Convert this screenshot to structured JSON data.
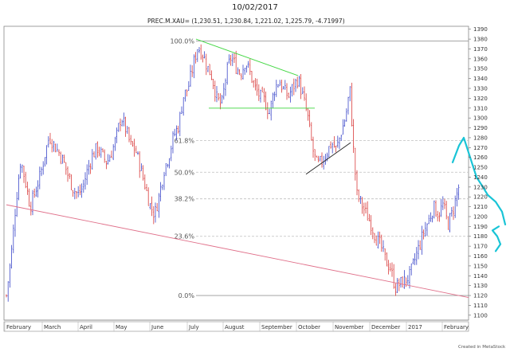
{
  "page": {
    "date_title": "10/02/2017",
    "symbol_info": "PREC.M.XAU= (1,230.51, 1,230.84, 1,221.02, 1,225.79, -4.71997)",
    "credit": "Created in MetaStock"
  },
  "colors": {
    "up_bar": "#3b47c9",
    "down_bar": "#d93b3b",
    "trend_green": "#3fd63f",
    "trend_pink": "#e0708a",
    "trend_black": "#222222",
    "annotation_cyan": "#19c4d6",
    "grid": "#bfbfbf",
    "frame": "#888888"
  },
  "chart_data": {
    "type": "ohlc",
    "title": "PREC.M.XAU= (1,230.51, 1,230.84, 1,221.02, 1,225.79, -4.71997)",
    "ylim": [
      1095,
      1393
    ],
    "y_ticks": [
      1100,
      1110,
      1120,
      1130,
      1140,
      1150,
      1160,
      1170,
      1180,
      1190,
      1200,
      1210,
      1220,
      1230,
      1240,
      1250,
      1260,
      1270,
      1280,
      1290,
      1300,
      1310,
      1320,
      1330,
      1340,
      1350,
      1360,
      1370,
      1380,
      1390
    ],
    "x_ticks": [
      "February",
      "March",
      "April",
      "May",
      "June",
      "July",
      "August",
      "September",
      "October",
      "November",
      "December",
      "2017",
      "February"
    ],
    "fib_levels": [
      {
        "label": "100.0%",
        "value": 1378
      },
      {
        "label": "61.8%",
        "value": 1277
      },
      {
        "label": "50.0%",
        "value": 1245
      },
      {
        "label": "38.2%",
        "value": 1218
      },
      {
        "label": "23.6%",
        "value": 1180
      },
      {
        "label": "0.0%",
        "value": 1120
      }
    ],
    "price_path": [
      [
        0,
        1120
      ],
      [
        6,
        1160
      ],
      [
        12,
        1215
      ],
      [
        18,
        1258
      ],
      [
        24,
        1235
      ],
      [
        30,
        1210
      ],
      [
        36,
        1225
      ],
      [
        42,
        1240
      ],
      [
        48,
        1262
      ],
      [
        54,
        1282
      ],
      [
        60,
        1272
      ],
      [
        66,
        1265
      ],
      [
        72,
        1255
      ],
      [
        78,
        1240
      ],
      [
        84,
        1228
      ],
      [
        90,
        1222
      ],
      [
        96,
        1230
      ],
      [
        102,
        1248
      ],
      [
        108,
        1262
      ],
      [
        114,
        1270
      ],
      [
        120,
        1262
      ],
      [
        126,
        1255
      ],
      [
        132,
        1265
      ],
      [
        138,
        1280
      ],
      [
        144,
        1302
      ],
      [
        150,
        1288
      ],
      [
        156,
        1272
      ],
      [
        162,
        1268
      ],
      [
        168,
        1250
      ],
      [
        174,
        1232
      ],
      [
        180,
        1212
      ],
      [
        186,
        1202
      ],
      [
        192,
        1222
      ],
      [
        198,
        1248
      ],
      [
        204,
        1262
      ],
      [
        210,
        1282
      ],
      [
        216,
        1292
      ],
      [
        222,
        1322
      ],
      [
        228,
        1330
      ],
      [
        234,
        1352
      ],
      [
        240,
        1372
      ],
      [
        246,
        1366
      ],
      [
        252,
        1352
      ],
      [
        258,
        1342
      ],
      [
        264,
        1320
      ],
      [
        270,
        1312
      ],
      [
        276,
        1345
      ],
      [
        282,
        1362
      ],
      [
        288,
        1352
      ],
      [
        294,
        1345
      ],
      [
        300,
        1358
      ],
      [
        306,
        1345
      ],
      [
        312,
        1330
      ],
      [
        318,
        1322
      ],
      [
        324,
        1318
      ],
      [
        330,
        1305
      ],
      [
        336,
        1328
      ],
      [
        342,
        1338
      ],
      [
        348,
        1328
      ],
      [
        354,
        1322
      ],
      [
        360,
        1332
      ],
      [
        366,
        1340
      ],
      [
        372,
        1322
      ],
      [
        378,
        1302
      ],
      [
        382,
        1280
      ],
      [
        386,
        1262
      ],
      [
        390,
        1252
      ],
      [
        396,
        1256
      ],
      [
        402,
        1265
      ],
      [
        408,
        1275
      ],
      [
        414,
        1268
      ],
      [
        420,
        1285
      ],
      [
        426,
        1302
      ],
      [
        431,
        1330
      ],
      [
        436,
        1262
      ],
      [
        440,
        1222
      ],
      [
        446,
        1212
      ],
      [
        452,
        1202
      ],
      [
        458,
        1192
      ],
      [
        464,
        1178
      ],
      [
        470,
        1170
      ],
      [
        476,
        1155
      ],
      [
        482,
        1148
      ],
      [
        488,
        1128
      ],
      [
        494,
        1132
      ],
      [
        500,
        1135
      ],
      [
        506,
        1140
      ],
      [
        512,
        1155
      ],
      [
        518,
        1170
      ],
      [
        524,
        1185
      ],
      [
        530,
        1196
      ],
      [
        536,
        1210
      ],
      [
        542,
        1202
      ],
      [
        548,
        1212
      ],
      [
        554,
        1192
      ],
      [
        560,
        1205
      ],
      [
        566,
        1225
      ],
      [
        572,
        1242
      ],
      [
        576,
        1235
      ]
    ],
    "trendlines": [
      {
        "color": "trend_green",
        "from": [
          246,
          1380
        ],
        "to": [
          374,
          1343
        ]
      },
      {
        "color": "trend_green",
        "from": [
          262,
          1310
        ],
        "to": [
          395,
          1310
        ]
      },
      {
        "color": "trend_black",
        "from": [
          384,
          1243
        ],
        "to": [
          440,
          1275
        ]
      },
      {
        "color": "trend_pink",
        "from": [
          8,
          1212
        ],
        "to": [
          588,
          1118
        ]
      }
    ],
    "annotations": [
      {
        "type": "freehand",
        "color": "annotation_cyan",
        "path": [
          [
            568,
            1255
          ],
          [
            576,
            1272
          ],
          [
            582,
            1280
          ],
          [
            590,
            1260
          ],
          [
            598,
            1240
          ],
          [
            606,
            1230
          ],
          [
            612,
            1222
          ],
          [
            622,
            1215
          ],
          [
            630,
            1205
          ],
          [
            634,
            1192
          ]
        ]
      },
      {
        "type": "freehand",
        "color": "annotation_cyan",
        "path": [
          [
            622,
            1165
          ],
          [
            628,
            1172
          ],
          [
            624,
            1180
          ],
          [
            618,
            1186
          ],
          [
            626,
            1190
          ]
        ]
      }
    ]
  }
}
